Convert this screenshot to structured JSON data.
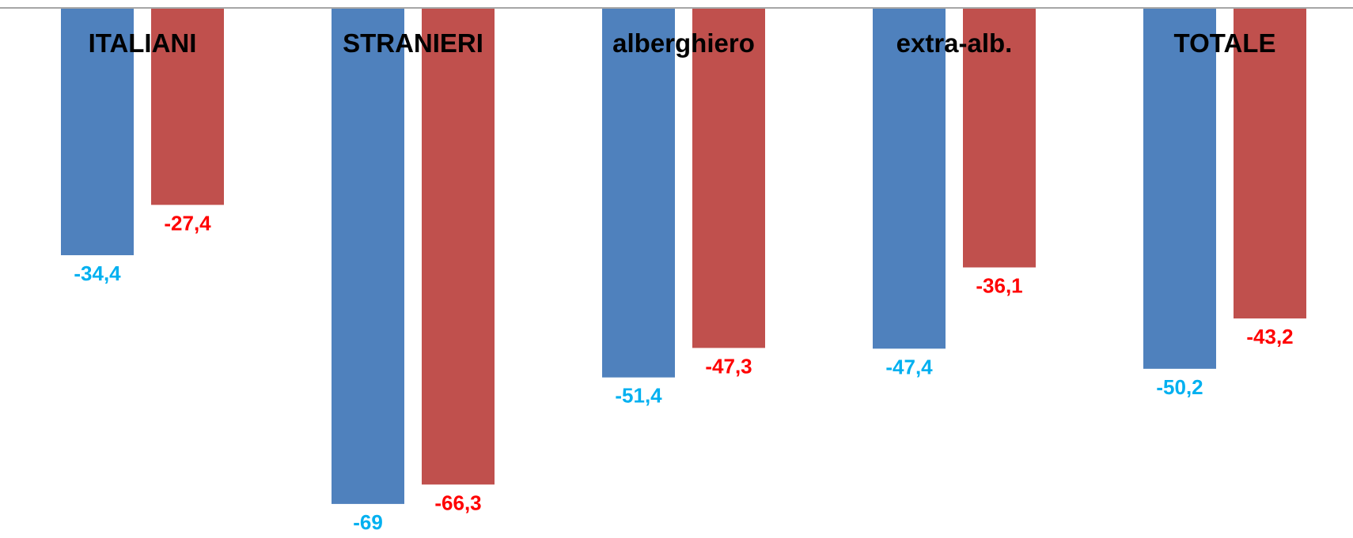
{
  "chart_data": {
    "type": "bar",
    "categories": [
      "ITALIANI",
      "STRANIERI",
      "alberghiero",
      "extra-alb.",
      "TOTALE"
    ],
    "series": [
      {
        "values": [
          -34.4,
          -69,
          -51.4,
          -47.4,
          -50.2
        ],
        "color": "#4F81BD",
        "label_color": "#00B0F0"
      },
      {
        "values": [
          -27.4,
          -66.3,
          -47.3,
          -36.1,
          -43.2
        ],
        "color": "#C0504D",
        "label_color": "#FF0000"
      }
    ],
    "data_labels": [
      [
        "-34,4",
        "-69",
        "-51,4",
        "-47,4",
        "-50,2"
      ],
      [
        "-27,4",
        "-66,3",
        "-47,3",
        "-36,1",
        "-43,2"
      ]
    ],
    "ylim": [
      -75,
      0
    ],
    "axis_color": "#A6A6A6",
    "title": "",
    "xlabel": "",
    "ylabel": "",
    "grid": false,
    "legend": "none"
  }
}
